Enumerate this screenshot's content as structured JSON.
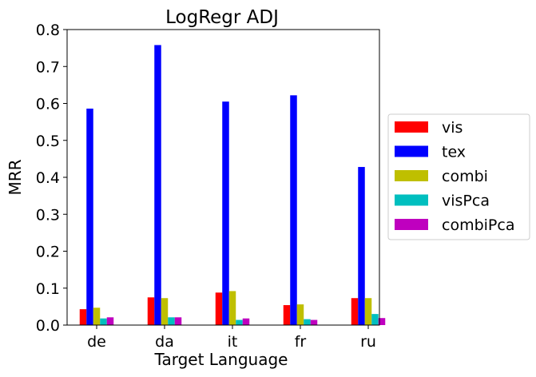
{
  "chart_data": {
    "type": "bar",
    "title": "LogRegr ADJ",
    "xlabel": "Target Language",
    "ylabel": "MRR",
    "categories": [
      "de",
      "da",
      "it",
      "fr",
      "ru"
    ],
    "ylim": [
      0,
      0.8
    ],
    "yticks": [
      "0.0",
      "0.1",
      "0.2",
      "0.3",
      "0.4",
      "0.5",
      "0.6",
      "0.7",
      "0.8"
    ],
    "grid": false,
    "legend_position": "right",
    "series": [
      {
        "name": "vis",
        "color": "#ff0000",
        "values": [
          0.043,
          0.075,
          0.088,
          0.054,
          0.073
        ]
      },
      {
        "name": "tex",
        "color": "#0000ff",
        "values": [
          0.586,
          0.758,
          0.605,
          0.622,
          0.428
        ]
      },
      {
        "name": "combi",
        "color": "#bfbf00",
        "values": [
          0.047,
          0.073,
          0.092,
          0.056,
          0.073
        ]
      },
      {
        "name": "visPca",
        "color": "#00bfbf",
        "values": [
          0.018,
          0.021,
          0.014,
          0.016,
          0.03
        ]
      },
      {
        "name": "combiPca",
        "color": "#bf00bf",
        "values": [
          0.021,
          0.021,
          0.018,
          0.014,
          0.019
        ]
      }
    ]
  }
}
